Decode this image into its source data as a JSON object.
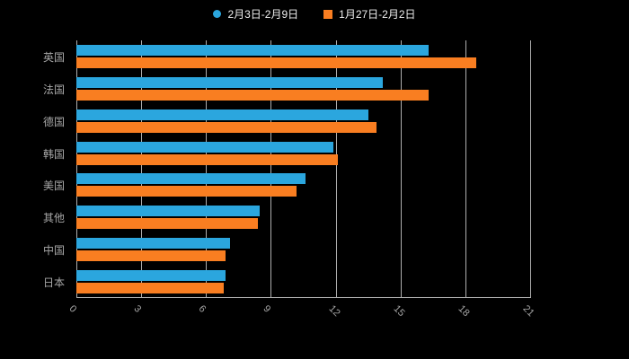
{
  "chart_data": {
    "type": "bar",
    "orientation": "horizontal",
    "title": "",
    "xlabel": "",
    "ylabel": "",
    "categories": [
      "英国",
      "法国",
      "德国",
      "韩国",
      "美国",
      "其他",
      "中国",
      "日本"
    ],
    "series": [
      {
        "name": "2月3日-2月9日",
        "color": "#2BA6DE",
        "values": [
          16.3,
          14.2,
          13.5,
          11.9,
          10.6,
          8.5,
          7.1,
          6.9
        ]
      },
      {
        "name": "1月27日-2月2日",
        "color": "#F97E21",
        "values": [
          18.5,
          16.3,
          13.9,
          12.1,
          10.2,
          8.4,
          6.9,
          6.8
        ]
      }
    ],
    "xlim": [
      0,
      21
    ],
    "x_ticks": [
      0,
      3,
      6,
      9,
      12,
      15,
      18,
      21
    ],
    "grid": true,
    "legend_position": "top",
    "colors": {
      "background": "#000000",
      "grid": "#AEAEAE",
      "axis_text": "#A6A6A6",
      "legend_text": "#EDEDED"
    }
  }
}
